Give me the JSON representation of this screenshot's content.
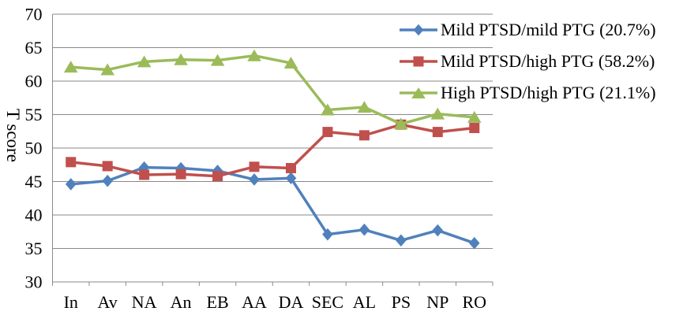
{
  "chart_data": {
    "type": "line",
    "title": "",
    "xlabel": "",
    "ylabel": "T score",
    "categories": [
      "In",
      "Av",
      "NA",
      "An",
      "EB",
      "AA",
      "DA",
      "SEC",
      "AL",
      "PS",
      "NP",
      "RO"
    ],
    "ylim": [
      30,
      70
    ],
    "yticks": [
      30,
      35,
      40,
      45,
      50,
      55,
      60,
      65,
      70
    ],
    "grid": true,
    "legend_position": "top-right-inside",
    "series": [
      {
        "name": "Mild PTSD/mild PTG (20.7%)",
        "marker": "diamond",
        "color": "#4F81BD",
        "values": [
          44.6,
          45.1,
          47.1,
          47.0,
          46.6,
          45.3,
          45.5,
          37.1,
          37.8,
          36.2,
          37.7,
          35.8
        ]
      },
      {
        "name": "Mild PTSD/high PTG (58.2%)",
        "marker": "square",
        "color": "#C0504D",
        "values": [
          47.9,
          47.3,
          46.0,
          46.1,
          45.8,
          47.2,
          47.0,
          52.4,
          51.9,
          53.5,
          52.4,
          53.0
        ]
      },
      {
        "name": "High PTSD/high PTG (21.1%)",
        "marker": "triangle",
        "color": "#9BBB59",
        "values": [
          62.1,
          61.7,
          62.9,
          63.2,
          63.1,
          63.8,
          62.7,
          55.7,
          56.1,
          53.6,
          55.1,
          54.6
        ]
      }
    ]
  },
  "colors": {
    "gridline": "#898989",
    "axis": "#898989",
    "text": "#000000",
    "background": "#FFFFFF"
  }
}
